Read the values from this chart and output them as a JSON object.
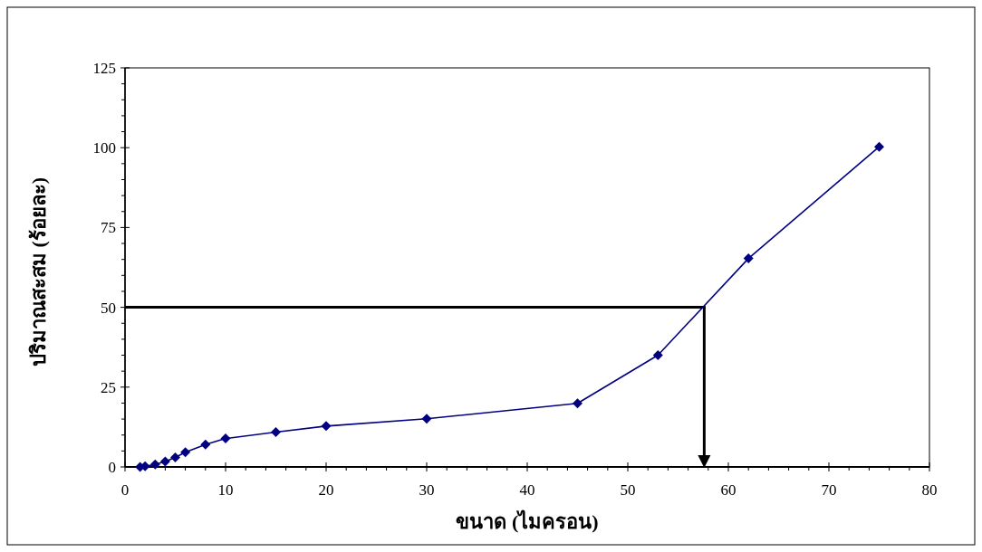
{
  "chart_data": {
    "type": "line",
    "xlabel": "ขนาด (ไมครอน)",
    "ylabel": "ปริมาณสะสม (ร้อยละ)",
    "x": [
      1.5,
      2,
      3,
      4,
      5,
      6,
      8,
      10,
      15,
      20,
      30,
      45,
      53,
      62,
      75
    ],
    "values": [
      0,
      0.2,
      0.8,
      1.7,
      3.0,
      4.6,
      7.0,
      8.9,
      10.9,
      12.8,
      15.1,
      19.9,
      35.0,
      65.3,
      100.3
    ],
    "color": "#000080",
    "marker": "diamond",
    "line_style": "solid",
    "xlim": [
      0,
      80
    ],
    "ylim": [
      0,
      125
    ],
    "xticks": [
      0,
      10,
      20,
      30,
      40,
      50,
      60,
      70,
      80
    ],
    "yticks": [
      0,
      25,
      50,
      75,
      100,
      125
    ],
    "ref_lines": [
      {
        "axis": "y",
        "value": 50,
        "color": "#000000"
      },
      {
        "axis": "x",
        "value": 57.6,
        "color": "#000000"
      }
    ]
  }
}
